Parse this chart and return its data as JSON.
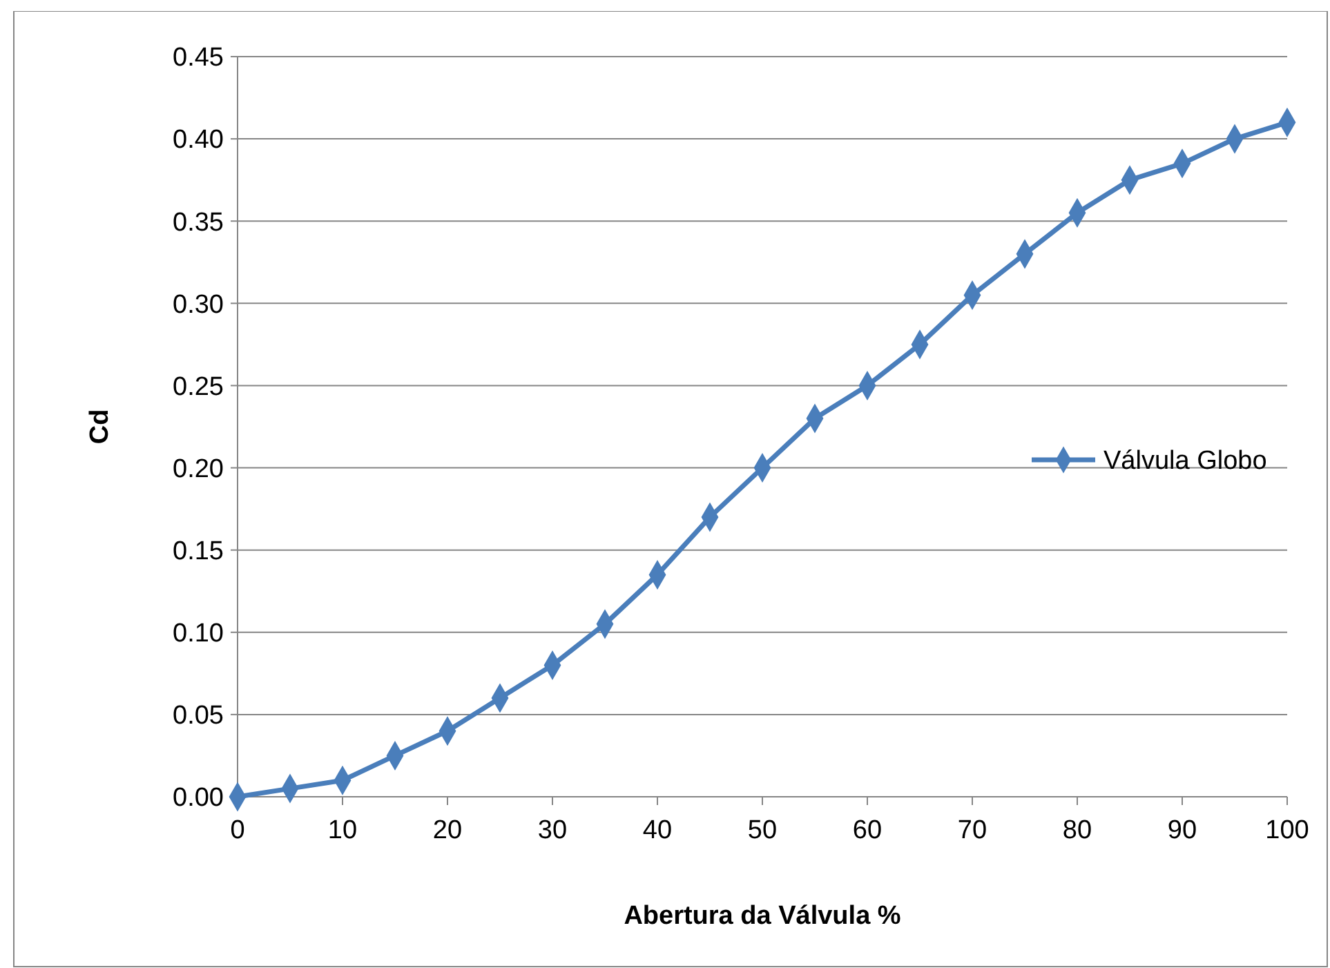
{
  "chart_data": {
    "type": "line",
    "xlabel": "Abertura da Válvula %",
    "ylabel": "Cd",
    "x": [
      0,
      5,
      10,
      15,
      20,
      25,
      30,
      35,
      40,
      45,
      50,
      55,
      60,
      65,
      70,
      75,
      80,
      85,
      90,
      95,
      100
    ],
    "series": [
      {
        "name": "Válvula Globo",
        "color": "#4a7ebb",
        "values": [
          0,
          0.005,
          0.01,
          0.025,
          0.04,
          0.06,
          0.08,
          0.105,
          0.135,
          0.17,
          0.2,
          0.23,
          0.25,
          0.275,
          0.305,
          0.33,
          0.355,
          0.375,
          0.385,
          0.4,
          0.41
        ]
      }
    ],
    "xlim": [
      0,
      100
    ],
    "xticks": [
      0,
      10,
      20,
      30,
      40,
      50,
      60,
      70,
      80,
      90,
      100
    ],
    "ylim": [
      0,
      0.45
    ],
    "yticks": [
      {
        "value": 0,
        "label": "0.00"
      },
      {
        "value": 0.05,
        "label": "0.05"
      },
      {
        "value": 0.1,
        "label": "0.10"
      },
      {
        "value": 0.15,
        "label": "0.15"
      },
      {
        "value": 0.2,
        "label": "0.20"
      },
      {
        "value": 0.25,
        "label": "0.25"
      },
      {
        "value": 0.3,
        "label": "0.30"
      },
      {
        "value": 0.35,
        "label": "0.35"
      },
      {
        "value": 0.4,
        "label": "0.40"
      },
      {
        "value": 0.45,
        "label": "0.45"
      }
    ],
    "grid": "y",
    "legend": "right",
    "marker": "diamond",
    "line_style": "solid"
  }
}
